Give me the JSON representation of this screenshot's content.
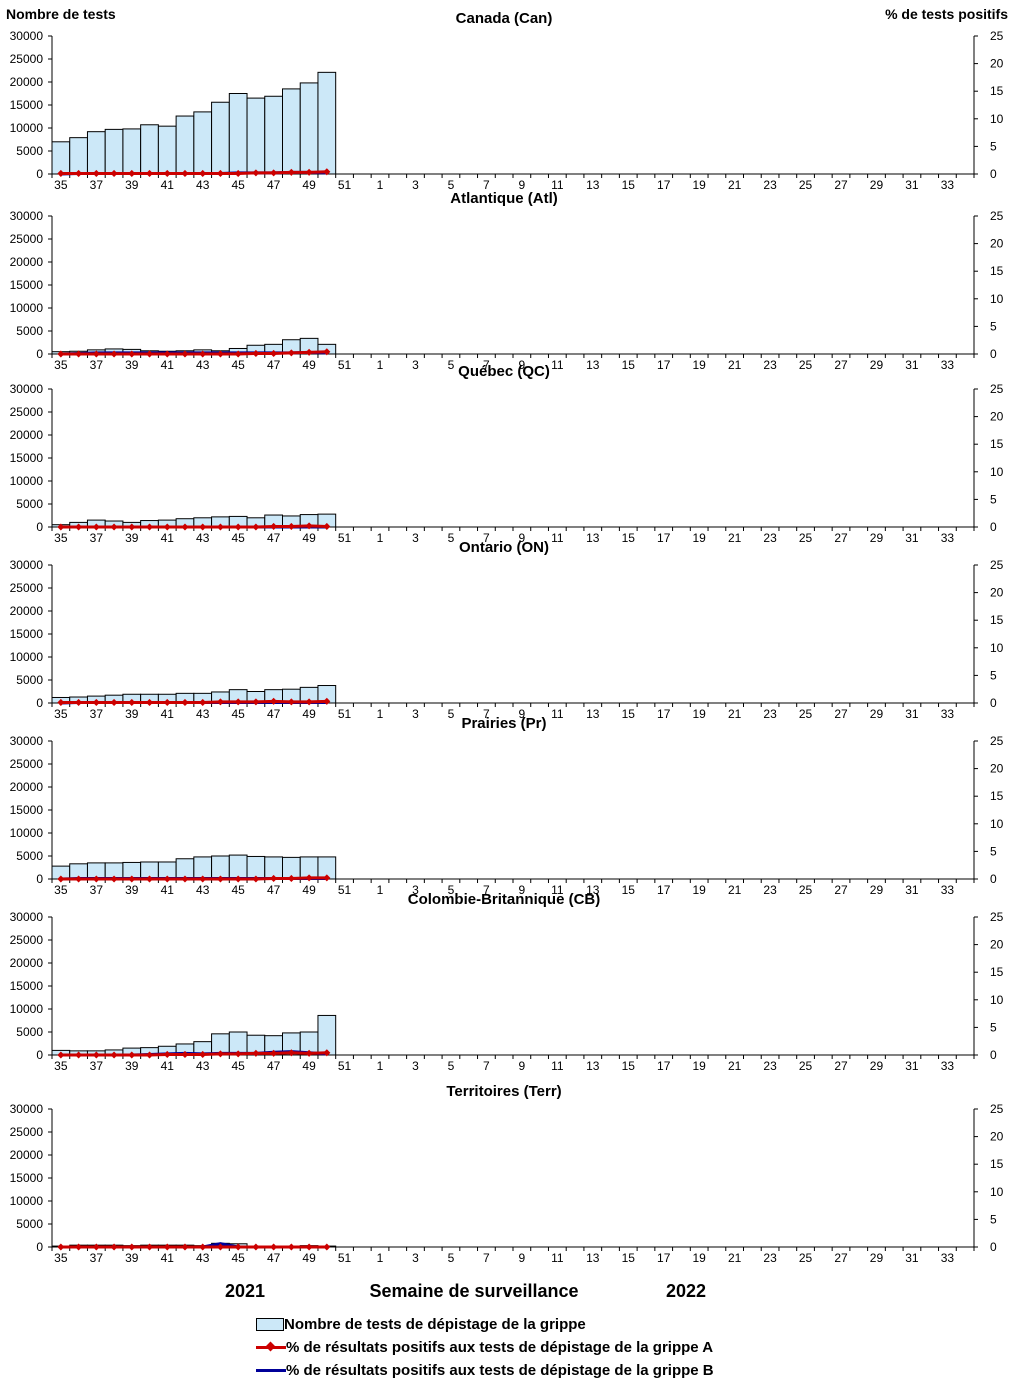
{
  "header": {
    "left_axis_title": "Nombre de tests",
    "right_axis_title": "%  de tests positifs"
  },
  "footer": {
    "year_left": "2021",
    "x_axis_title": "Semaine de surveillance",
    "year_right": "2022"
  },
  "legend": {
    "bar_label": "Nombre de tests de dépistage de la grippe",
    "flu_a_label": "% de résultats positifs aux tests de dépistage de la grippe A",
    "flu_b_label": "% de résultats positifs aux tests de dépistage de la grippe B"
  },
  "colors": {
    "bar_fill": "#cce8f8",
    "bar_stroke": "#000000",
    "flu_a": "#cc0000",
    "flu_b": "#000099"
  },
  "chart_data": {
    "type": "bar+line",
    "left_axis": {
      "ylim": [
        0,
        30000
      ],
      "ticks": [
        0,
        5000,
        10000,
        15000,
        20000,
        25000,
        30000
      ]
    },
    "right_axis": {
      "ylim": [
        0,
        25
      ],
      "ticks": [
        0,
        5,
        10,
        15,
        20,
        25
      ]
    },
    "weeks": [
      "35",
      "36",
      "37",
      "38",
      "39",
      "40",
      "41",
      "42",
      "43",
      "44",
      "45",
      "46",
      "47",
      "48",
      "49",
      "50",
      "51",
      "52",
      "1",
      "2",
      "3",
      "4",
      "5",
      "6",
      "7",
      "8",
      "9",
      "10",
      "11",
      "12",
      "13",
      "14",
      "15",
      "16",
      "17",
      "18",
      "19",
      "20",
      "21",
      "22",
      "23",
      "24",
      "25",
      "26",
      "27",
      "28",
      "29",
      "30",
      "31",
      "32",
      "33",
      "34"
    ],
    "tick_labels": [
      "35",
      "37",
      "39",
      "41",
      "43",
      "45",
      "47",
      "49",
      "51",
      "1",
      "3",
      "5",
      "7",
      "9",
      "11",
      "13",
      "15",
      "17",
      "19",
      "21",
      "23",
      "25",
      "27",
      "29",
      "31",
      "33"
    ],
    "panels": [
      {
        "title": "Canada (Can)",
        "tests": [
          7000,
          7900,
          9200,
          9700,
          9800,
          10700,
          10400,
          12600,
          13500,
          15600,
          17500,
          16500,
          16900,
          18500,
          19800,
          22100
        ],
        "flu_a_pct": [
          0.1,
          0.1,
          0.1,
          0.1,
          0.1,
          0.1,
          0.1,
          0.1,
          0.1,
          0.1,
          0.1,
          0.2,
          0.2,
          0.3,
          0.3,
          0.4
        ],
        "flu_b_pct": [
          0.0,
          0.1,
          0.1,
          0.1,
          0.1,
          0.1,
          0.1,
          0.1,
          0.1,
          0.1,
          0.2,
          0.2,
          0.2,
          0.3,
          0.3,
          0.2
        ]
      },
      {
        "title": "Atlantique (Atl)",
        "tests": [
          500,
          600,
          900,
          1100,
          1000,
          700,
          600,
          700,
          900,
          700,
          1200,
          1900,
          2100,
          3100,
          3400,
          2100
        ],
        "flu_a_pct": [
          0.0,
          0.0,
          0.0,
          0.0,
          0.0,
          0.0,
          0.0,
          0.0,
          0.0,
          0.0,
          0.0,
          0.1,
          0.1,
          0.2,
          0.3,
          0.4
        ],
        "flu_b_pct": [
          0.0,
          0.1,
          0.2,
          0.2,
          0.2,
          0.2,
          0.2,
          0.2,
          0.2,
          0.2,
          0.2,
          0.2,
          0.2,
          0.2,
          0.3,
          0.2
        ]
      },
      {
        "title": "Québec (QC)",
        "tests": [
          500,
          1000,
          1500,
          1300,
          1000,
          1400,
          1500,
          1800,
          2000,
          2200,
          2300,
          2000,
          2600,
          2400,
          2700,
          2800
        ],
        "flu_a_pct": [
          0.0,
          0.0,
          0.0,
          0.0,
          0.0,
          0.0,
          0.0,
          0.0,
          0.0,
          0.0,
          0.0,
          0.0,
          0.1,
          0.1,
          0.2,
          0.1
        ],
        "flu_b_pct": [
          0.0,
          0.0,
          0.0,
          0.0,
          0.0,
          0.0,
          0.0,
          0.0,
          0.0,
          0.0,
          0.0,
          0.0,
          0.0,
          0.0,
          0.0,
          0.0
        ]
      },
      {
        "title": "Ontario (ON)",
        "tests": [
          1200,
          1300,
          1500,
          1700,
          1900,
          1900,
          1900,
          2100,
          2100,
          2400,
          2900,
          2500,
          2900,
          3000,
          3400,
          3800
        ],
        "flu_a_pct": [
          0.1,
          0.1,
          0.1,
          0.1,
          0.1,
          0.1,
          0.1,
          0.1,
          0.1,
          0.2,
          0.2,
          0.2,
          0.3,
          0.2,
          0.2,
          0.3
        ],
        "flu_b_pct": [
          0.0,
          0.1,
          0.1,
          0.1,
          0.1,
          0.1,
          0.1,
          0.1,
          0.1,
          0.1,
          0.1,
          0.1,
          0.1,
          0.1,
          0.1,
          0.1
        ]
      },
      {
        "title": "Prairies (Pr)",
        "tests": [
          2800,
          3300,
          3500,
          3500,
          3600,
          3700,
          3700,
          4400,
          4800,
          5000,
          5200,
          4900,
          4800,
          4700,
          4800,
          4800
        ],
        "flu_a_pct": [
          0.0,
          0.0,
          0.0,
          0.0,
          0.0,
          0.0,
          0.0,
          0.0,
          0.0,
          0.0,
          0.0,
          0.0,
          0.1,
          0.1,
          0.2,
          0.2
        ],
        "flu_b_pct": [
          0.0,
          0.1,
          0.1,
          0.1,
          0.1,
          0.1,
          0.1,
          0.1,
          0.1,
          0.1,
          0.1,
          0.1,
          0.1,
          0.1,
          0.1,
          0.1
        ]
      },
      {
        "title": "Colombie-Britannique (CB)",
        "tests": [
          1000,
          900,
          900,
          1100,
          1500,
          1600,
          1900,
          2400,
          2900,
          4600,
          5000,
          4300,
          4200,
          4800,
          5000,
          8600
        ],
        "flu_a_pct": [
          0.0,
          0.0,
          0.0,
          0.0,
          0.0,
          0.0,
          0.1,
          0.1,
          0.1,
          0.2,
          0.2,
          0.3,
          0.3,
          0.4,
          0.3,
          0.4
        ],
        "flu_b_pct": [
          0.0,
          0.0,
          0.0,
          0.0,
          0.0,
          0.1,
          0.2,
          0.3,
          0.2,
          0.3,
          0.3,
          0.3,
          0.5,
          0.6,
          0.4,
          0.2
        ]
      },
      {
        "title": "Territoires (Terr)",
        "tests": [
          200,
          400,
          400,
          400,
          300,
          400,
          400,
          400,
          300,
          800,
          700,
          200,
          200,
          200,
          300,
          200
        ],
        "flu_a_pct": [
          0.0,
          0.0,
          0.0,
          0.0,
          0.0,
          0.0,
          0.0,
          0.0,
          0.0,
          0.0,
          0.0,
          0.0,
          0.0,
          0.0,
          0.0,
          0.0
        ],
        "flu_b_pct": [
          0.0,
          0.0,
          0.0,
          0.0,
          0.0,
          0.0,
          0.0,
          0.0,
          0.0,
          0.6,
          0.0,
          0.0,
          0.0,
          0.0,
          0.0,
          0.0
        ]
      }
    ]
  }
}
